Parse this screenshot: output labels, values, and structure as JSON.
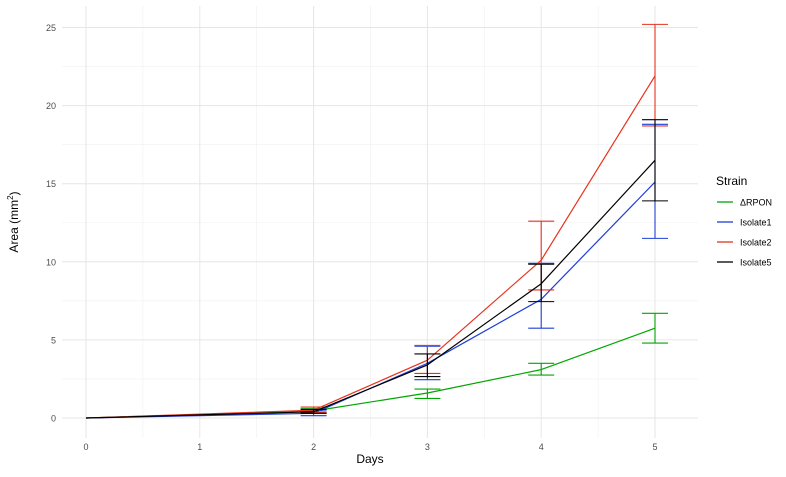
{
  "chart_data": {
    "type": "line",
    "title": "",
    "xlabel": "Days",
    "ylabel_main": "Area (mm",
    "ylabel_sup": "2",
    "ylabel_end": ")",
    "xlim": [
      0,
      5
    ],
    "ylim": [
      0,
      25
    ],
    "x_ticks": [
      0,
      1,
      2,
      3,
      4,
      5
    ],
    "y_ticks": [
      0,
      5,
      10,
      15,
      20,
      25
    ],
    "grid": true,
    "legend": {
      "title": "Strain",
      "position": "right"
    },
    "series": [
      {
        "name": "ΔRPON",
        "color": "#00a600",
        "points": [
          {
            "x": 0,
            "y": 0,
            "lo": null,
            "hi": null
          },
          {
            "x": 2,
            "y": 0.45,
            "lo": 0.3,
            "hi": 0.6
          },
          {
            "x": 3,
            "y": 1.6,
            "lo": 1.25,
            "hi": 1.85
          },
          {
            "x": 4,
            "y": 3.1,
            "lo": 2.75,
            "hi": 3.5
          },
          {
            "x": 5,
            "y": 5.75,
            "lo": 4.8,
            "hi": 6.7
          }
        ]
      },
      {
        "name": "Isolate1",
        "color": "#1f3fd6",
        "points": [
          {
            "x": 0,
            "y": 0,
            "lo": null,
            "hi": null
          },
          {
            "x": 2,
            "y": 0.3,
            "lo": 0.15,
            "hi": 0.45
          },
          {
            "x": 3,
            "y": 3.5,
            "lo": 2.45,
            "hi": 4.6
          },
          {
            "x": 4,
            "y": 7.6,
            "lo": 5.75,
            "hi": 9.9
          },
          {
            "x": 5,
            "y": 15.1,
            "lo": 11.5,
            "hi": 18.8
          }
        ]
      },
      {
        "name": "Isolate2",
        "color": "#e8321e",
        "points": [
          {
            "x": 0,
            "y": 0,
            "lo": null,
            "hi": null
          },
          {
            "x": 2,
            "y": 0.5,
            "lo": 0.35,
            "hi": 0.7
          },
          {
            "x": 3,
            "y": 3.7,
            "lo": 2.85,
            "hi": 4.65
          },
          {
            "x": 4,
            "y": 10.1,
            "lo": 8.2,
            "hi": 12.6
          },
          {
            "x": 5,
            "y": 21.9,
            "lo": 18.7,
            "hi": 25.2
          }
        ]
      },
      {
        "name": "Isolate5",
        "color": "#000000",
        "points": [
          {
            "x": 0,
            "y": 0,
            "lo": null,
            "hi": null
          },
          {
            "x": 2,
            "y": 0.4,
            "lo": 0.3,
            "hi": 0.55
          },
          {
            "x": 3,
            "y": 3.4,
            "lo": 2.65,
            "hi": 4.1
          },
          {
            "x": 4,
            "y": 8.6,
            "lo": 7.45,
            "hi": 9.85
          },
          {
            "x": 5,
            "y": 16.5,
            "lo": 13.9,
            "hi": 19.1
          }
        ]
      }
    ]
  }
}
